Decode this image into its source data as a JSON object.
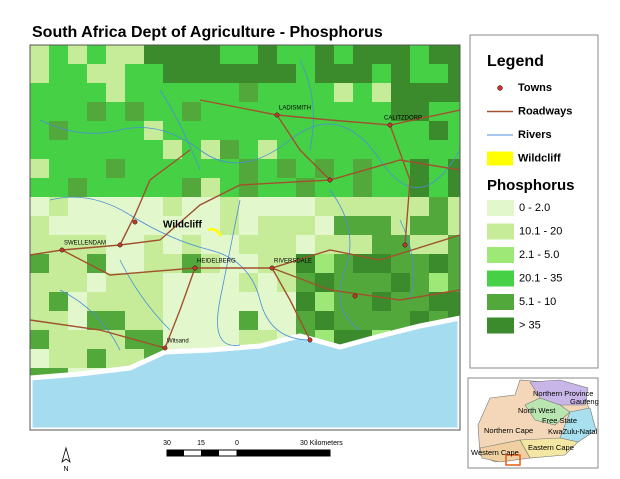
{
  "title": "South Africa Dept of Agriculture - Phosphorus",
  "map": {
    "towns": [
      "LADISMITH",
      "CALITZDORP",
      "SWELLENDAM",
      "HEIDELBERG",
      "RIVERSDALE",
      "Witsand"
    ],
    "site": "Wildcliff"
  },
  "legend": {
    "title": "Legend",
    "items": [
      {
        "label": "Towns",
        "color": "#c0392b"
      },
      {
        "label": "Roadways",
        "color": "#a0522d"
      },
      {
        "label": "Rivers",
        "color": "#4a8fd6"
      },
      {
        "label": "Wildcliff",
        "color": "#ffff00"
      }
    ],
    "phosphorus_title": "Phosphorus",
    "classes": [
      {
        "label": "0 - 2.0",
        "color": "#e2f7cc"
      },
      {
        "label": "10.1 - 20",
        "color": "#c6ec9a"
      },
      {
        "label": "2.1 - 5.0",
        "color": "#9ee878"
      },
      {
        "label": "20.1 - 35",
        "color": "#46d046"
      },
      {
        "label": "5.1 - 10",
        "color": "#52a83a"
      },
      {
        "label": "> 35",
        "color": "#3b8a2c"
      }
    ]
  },
  "scale_bar": {
    "labels": [
      "30",
      "15",
      "0",
      "30 Kilometers"
    ]
  },
  "north_arrow": "N",
  "inset": {
    "provinces": [
      "Northern Province",
      "Gauteng",
      "North West",
      "Free State",
      "KwaZulu-Natal",
      "Northern Cape",
      "Eastern Cape",
      "Western Cape"
    ]
  }
}
